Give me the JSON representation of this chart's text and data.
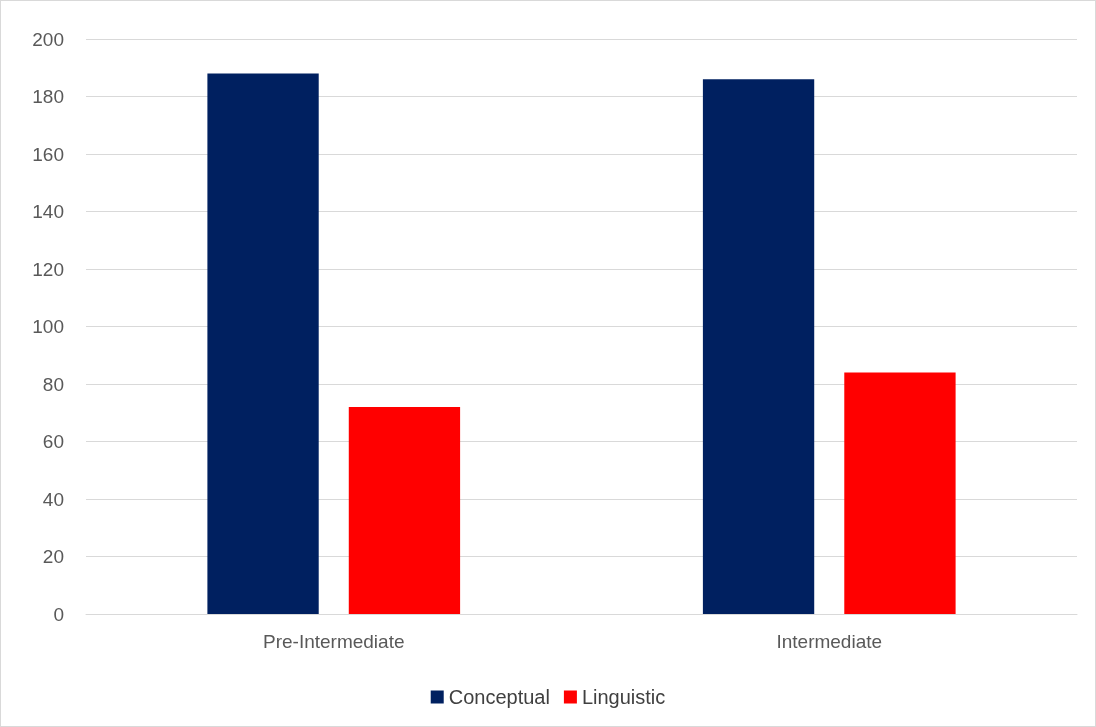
{
  "chart_data": {
    "type": "bar",
    "categories": [
      "Pre-Intermediate",
      "Intermediate"
    ],
    "series": [
      {
        "name": "Conceptual",
        "color": "#002060",
        "values": [
          188,
          186
        ]
      },
      {
        "name": "Linguistic",
        "color": "#ff0000",
        "values": [
          72,
          84
        ]
      }
    ],
    "ylim": [
      0,
      200
    ],
    "yticks": [
      0,
      20,
      40,
      60,
      80,
      100,
      120,
      140,
      160,
      180,
      200
    ],
    "grid": "y",
    "legend": "bottom"
  }
}
